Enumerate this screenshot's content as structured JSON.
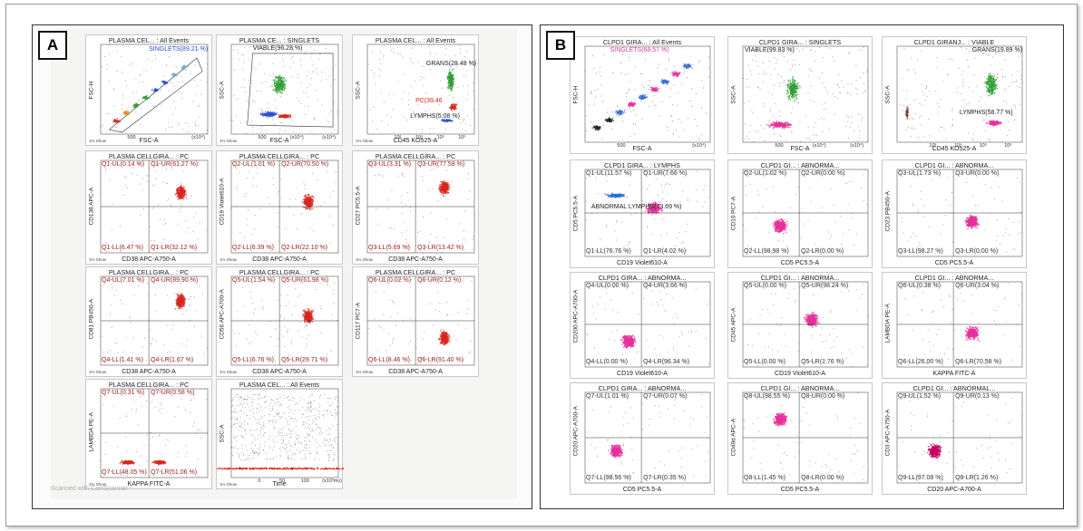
{
  "figure": {
    "panel_a": {
      "label": "A",
      "plots": [
        {
          "title": "PLASMA CEL... : All Events",
          "xlabel": "FSC-A",
          "ylabel": "FSC-H",
          "gate": "SINGLETS(89.21 %)",
          "gate_color": "#2a4fd6",
          "show": "1% Show",
          "ticks": [
            "500",
            "(x10⁴)"
          ]
        },
        {
          "title": "PLASMA CE... : SINGLETS",
          "xlabel": "FSC-A",
          "ylabel": "SSC-A",
          "gate": "VIABLE(96.28 %)",
          "gate_color": "#222222",
          "show": "1% Show",
          "ticks": [
            "500",
            "(x10⁴)",
            "(x10⁴)"
          ]
        },
        {
          "title": "PLASMA CEL... : All Events",
          "xlabel": "CD45 KO525-A",
          "ylabel": "SSC-A",
          "gates": [
            "GRANS(28.48 %)",
            "PC(39.46",
            "LYMPHS(5.08 %)"
          ],
          "show": "1% Show",
          "ticks": [
            "10³",
            "10⁴",
            "10⁵",
            "10⁶"
          ]
        },
        {
          "title": "PLASMA CELLGIRA... : PC",
          "xlabel": "CD38 APC-A750-A",
          "ylabel": "CD138 APC-A",
          "quads": [
            "Q1-UL(0.14 %)",
            "Q1-UR(61.27 %)",
            "Q1-LL(6.47 %)",
            "Q1-LR(32.12 %)"
          ],
          "show": "1% Show"
        },
        {
          "title": "PLASMA CELLGIRA... : PC",
          "xlabel": "CD38 APC-A750-A",
          "ylabel": "CD19 Violet610-A",
          "quads": [
            "Q2-UL(1.01 %)",
            "Q2-UR(70.50 %)",
            "Q2-LL(6.39 %)",
            "Q2-LR(22.10 %)"
          ],
          "show": "1% Show"
        },
        {
          "title": "PLASMA CELLGIRA... : PC",
          "xlabel": "CD38 APC-A750-A",
          "ylabel": "CD27 PC5.5-A",
          "quads": [
            "Q3-UL(3.31 %)",
            "Q3-UR(77.58 %)",
            "Q3-LL(5.69 %)",
            "Q3-LR(13.42 %)"
          ],
          "show": "1% Show"
        },
        {
          "title": "PLASMA CELLGIRA... : PC",
          "xlabel": "CD38 APC-A750-A",
          "ylabel": "CD81 PB450-A",
          "quads": [
            "Q4-UL(7.01 %)",
            "Q4-UR(89.90 %)",
            "Q4-LL(1.41 %)",
            "Q4-LR(1.67 %)"
          ],
          "show": "1% Show"
        },
        {
          "title": "PLASMA CELLGIRA... : PC",
          "xlabel": "CD38 APC-A750-A",
          "ylabel": "CD56 APC-A700-A",
          "quads": [
            "Q5-UL(1.54 %)",
            "Q5-UR(61.98 %)",
            "Q5-LL(6.76 %)",
            "Q5-LR(29.71 %)"
          ],
          "show": "1% Show"
        },
        {
          "title": "PLASMA CELLGIRA... : PC",
          "xlabel": "CD38 APC-A750-A",
          "ylabel": "CD117 PC7-A",
          "quads": [
            "Q6-UL(0.02 %)",
            "Q6-UR(0.12 %)",
            "Q6-LL(8.46 %)",
            "Q6-LR(91.40 %)"
          ],
          "show": "1% Show"
        },
        {
          "title": "PLASMA CELLGIRA... : PC",
          "xlabel": "KAPPA FITC-A",
          "ylabel": "LAMBDA PE-A",
          "quads": [
            "Q7-UL(0.31 %)",
            "Q7-UR(0.58 %)",
            "Q7-LL(48.05 %)",
            "Q7-LR(51.06 %)"
          ],
          "show": "1% Show"
        },
        {
          "title": "PLASMA CEL... : All Events",
          "xlabel": "Time",
          "ylabel": "SSC-A",
          "show": "1% Show",
          "ticks": [
            "0",
            "50",
            "100",
            "(x10³ms)"
          ]
        }
      ]
    },
    "panel_b": {
      "label": "B",
      "plots": [
        {
          "title": "CLPD1 GIRA... : All Events",
          "xlabel": "FSC-A",
          "ylabel": "FSC-H",
          "gate": "SINGLETS(69.57 %)",
          "gate_color": "#d43c9b",
          "ticks": [
            "500",
            "(x10⁴)"
          ]
        },
        {
          "title": "CLPD1 GIRA... : SINGLETS",
          "xlabel": "FSC-A",
          "ylabel": "SSC-A",
          "gate": "VIABLE(99.83 %)",
          "gate_color": "#222222",
          "ticks": [
            "500",
            "(x10⁴)",
            "(x10⁴)"
          ]
        },
        {
          "title": "CLPD1 GIRANJ... : VIABLE",
          "xlabel": "CD45 KO525-A",
          "ylabel": "SSC-A",
          "gates": [
            "GRANS(19.89 %)",
            "LYMPHS(58.77 %)"
          ],
          "ticks": [
            "10³",
            "10⁴",
            "10⁵",
            "10⁶"
          ]
        },
        {
          "title": "CLPD1 GIRA... : LYMPHS",
          "xlabel": "CD19 Violet610-A",
          "ylabel": "CD5 PC5.5-A",
          "quads": [
            "Q1-UL(11.57 %)",
            "Q1-UR(7.66 %)",
            "Q1-LL(76.76 %)",
            "Q1-LR(4.02 %)"
          ],
          "gate": "ABNORMAL LYMPHS(73.69 %)"
        },
        {
          "title": "CLPD1 GI... : ABNORMA...",
          "xlabel": "CD5 PC5.5-A",
          "ylabel": "CD10 PC7-A",
          "quads": [
            "Q2-UL(1.02 %)",
            "Q2-UR(0.00 %)",
            "Q2-LL(98.98 %)",
            "Q2-LR(0.00 %)"
          ]
        },
        {
          "title": "CLPD1 GI... : ABNORMA...",
          "xlabel": "CD5 PC5.5-A",
          "ylabel": "CD23 PB450-A",
          "quads": [
            "Q3-UL(1.73 %)",
            "Q3-UR(0.00 %)",
            "Q3-LL(98.27 %)",
            "Q3-LR(0.00 %)"
          ]
        },
        {
          "title": "CLPD1 GIRA... : ABNORMA...",
          "xlabel": "CD19 Violet610-A",
          "ylabel": "CD200 APC-A700-A",
          "quads": [
            "Q4-UL(0.00 %)",
            "Q4-UR(3.66 %)",
            "Q4-LL(0.00 %)",
            "Q4-LR(96.34 %)"
          ]
        },
        {
          "title": "CLPD1 GI... : ABNORMA...",
          "xlabel": "CD19 Violet610-A",
          "ylabel": "CD45 APC-A",
          "quads": [
            "Q5-UL(0.00 %)",
            "Q5-UR(98.24 %)",
            "Q5-LL(0.00 %)",
            "Q5-LR(1.76 %)"
          ]
        },
        {
          "title": "CLPD1 GI... : ABNORMA...",
          "xlabel": "KAPPA FITC-A",
          "ylabel": "LAMBDA PE-A",
          "quads": [
            "Q6-UL(0.38 %)",
            "Q6-UR(3.04 %)",
            "Q6-LL(26.00 %)",
            "Q6-LR(70.58 %)"
          ]
        },
        {
          "title": "CLPD1 GIRA... : ABNORMA...",
          "xlabel": "CD5 PC5.5-A",
          "ylabel": "CD20 APC-A700-A",
          "quads": [
            "Q7-UL(1.01 %)",
            "Q7-UR(0.07 %)",
            "Q7-LL(98.56 %)",
            "Q7-LR(0.35 %)"
          ]
        },
        {
          "title": "CLPD1 GI... : ABNORMA...",
          "xlabel": "CD5 PC5.5-A",
          "ylabel": "CD49d APC-A",
          "quads": [
            "Q8-UL(98.55 %)",
            "Q8-UR(0.00 %)",
            "Q8-LL(1.45 %)",
            "Q8-LR(0.00 %)"
          ]
        },
        {
          "title": "CLPD1 GI... : ABNORMAL...",
          "xlabel": "CD20 APC-A700-A",
          "ylabel": "CD3 APC-A750-A",
          "quads": [
            "Q9-UL(1.52 %)",
            "Q9-UR(0.13 %)",
            "Q9-LL(97.08 %)",
            "Q9-LR(1.26 %)"
          ]
        }
      ]
    },
    "colors": {
      "dark_red": "#9b1c1c",
      "red": "#d7261e",
      "green": "#2e9e33",
      "blue": "#2a4fd6",
      "magenta": "#e4329a",
      "black_dots": "#333333"
    }
  }
}
